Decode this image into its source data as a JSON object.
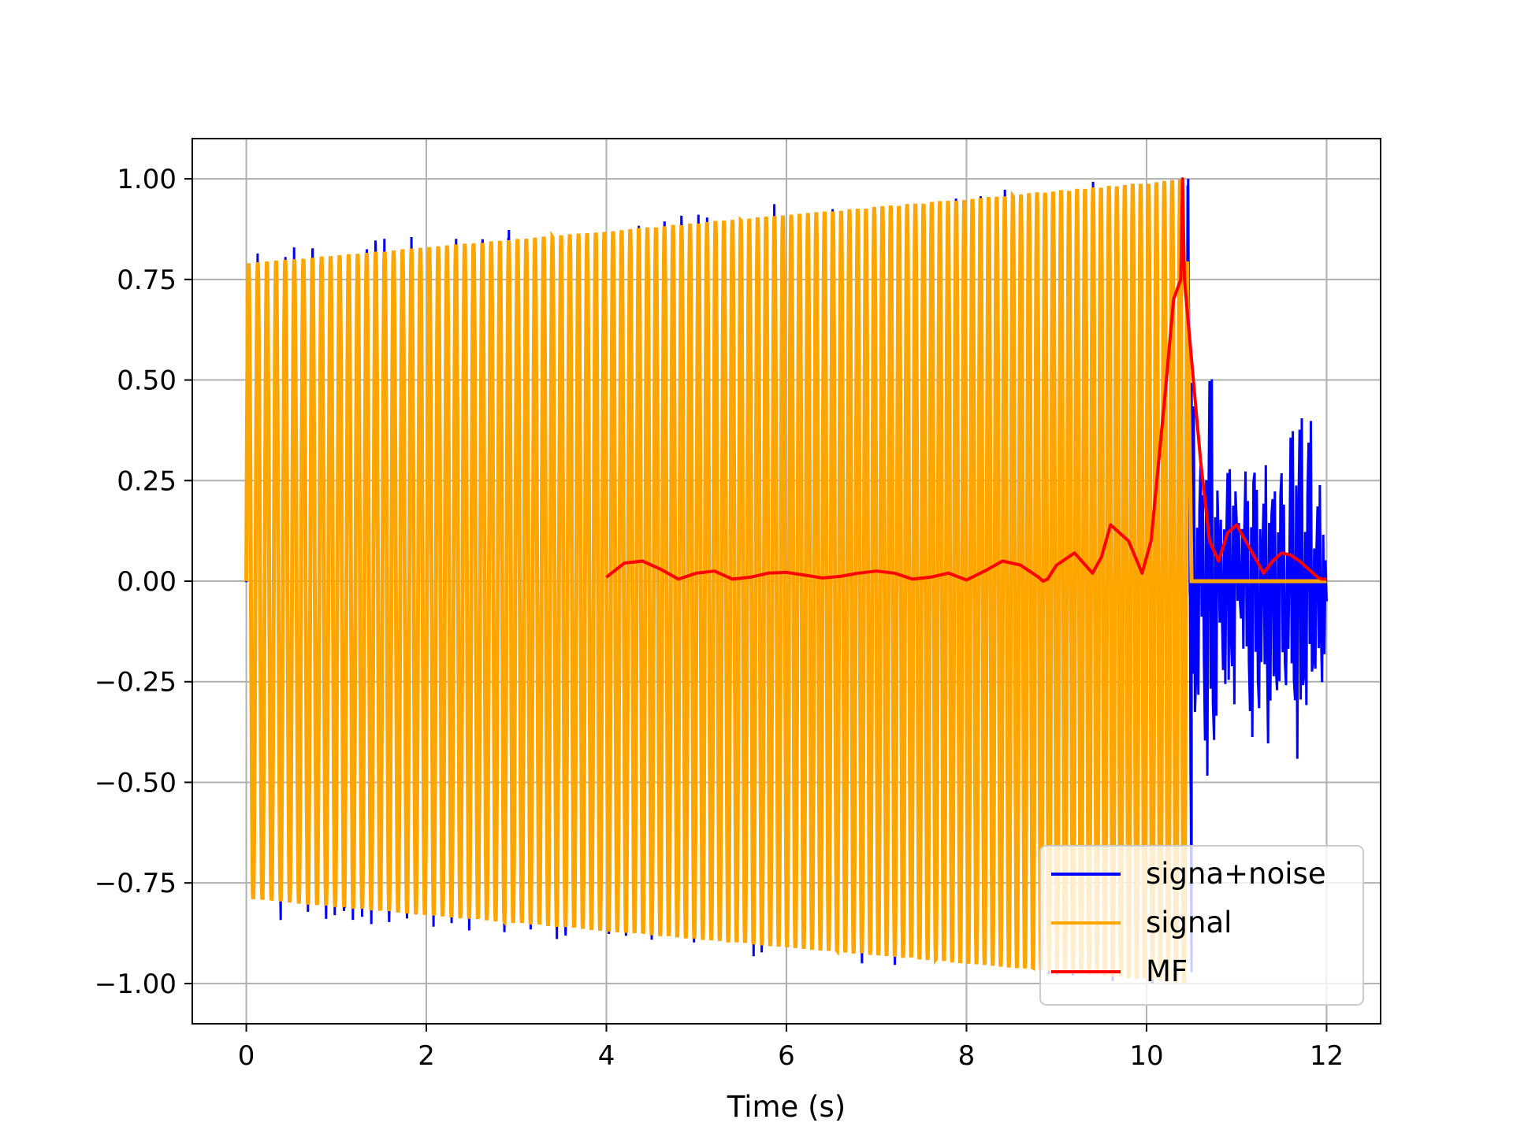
{
  "chart_data": {
    "type": "line",
    "title": "",
    "xlabel": "Time (s)",
    "ylabel": "",
    "xlim": [
      -0.6,
      12.6
    ],
    "ylim": [
      -1.1,
      1.1
    ],
    "xticks": [
      0,
      2,
      4,
      6,
      8,
      10,
      12
    ],
    "xtick_labels": [
      "0",
      "2",
      "4",
      "6",
      "8",
      "10",
      "12"
    ],
    "yticks": [
      -1.0,
      -0.75,
      -0.5,
      -0.25,
      0.0,
      0.25,
      0.5,
      0.75,
      1.0
    ],
    "ytick_labels": [
      "−1.00",
      "−0.75",
      "−0.50",
      "−0.25",
      "0.00",
      "0.25",
      "0.50",
      "0.75",
      "1.00"
    ],
    "grid": true,
    "legend_position": "lower-right",
    "series": [
      {
        "name": "signa+noise",
        "color": "#0000ff",
        "description_of_shape": "chirp plus noise, 0 to 12 s",
        "noise_segment": {
          "x": [
            10.5,
            10.55,
            10.6,
            10.65,
            10.7,
            10.75,
            10.8,
            10.85,
            10.9,
            10.95,
            11.0,
            11.05,
            11.1,
            11.15,
            11.2,
            11.25,
            11.3,
            11.35,
            11.4,
            11.45,
            11.5,
            11.55,
            11.6,
            11.65,
            11.7,
            11.75,
            11.8,
            11.85,
            11.9,
            11.95,
            12.0
          ],
          "y": [
            0.49,
            -0.3,
            0.25,
            -0.41,
            0.46,
            -0.36,
            0.1,
            -0.2,
            0.33,
            -0.28,
            0.17,
            -0.15,
            0.26,
            -0.32,
            0.3,
            -0.25,
            0.22,
            -0.33,
            0.27,
            -0.28,
            0.24,
            -0.22,
            0.3,
            -0.37,
            0.41,
            -0.3,
            0.33,
            -0.25,
            0.2,
            -0.2,
            -0.05
          ]
        }
      },
      {
        "name": "signal",
        "color": "#ffa500",
        "envelope_start": [
          0.0,
          0.79
        ],
        "envelope_end": [
          10.45,
          1.0
        ],
        "zero_after": 10.5,
        "zero_end": 12.0
      },
      {
        "name": "MF",
        "color": "#ff0000",
        "x": [
          4.0,
          4.2,
          4.4,
          4.6,
          4.8,
          5.0,
          5.2,
          5.4,
          5.6,
          5.8,
          6.0,
          6.2,
          6.4,
          6.6,
          6.8,
          7.0,
          7.2,
          7.4,
          7.6,
          7.8,
          8.0,
          8.2,
          8.4,
          8.6,
          8.8,
          8.85,
          8.9,
          9.0,
          9.2,
          9.4,
          9.5,
          9.6,
          9.8,
          9.95,
          10.05,
          10.2,
          10.3,
          10.38,
          10.4,
          10.42,
          10.5,
          10.6,
          10.7,
          10.8,
          10.9,
          11.0,
          11.1,
          11.2,
          11.3,
          11.4,
          11.5,
          11.6,
          11.7,
          11.8,
          11.9,
          11.95,
          12.0
        ],
        "y": [
          0.01,
          0.045,
          0.05,
          0.03,
          0.005,
          0.02,
          0.025,
          0.005,
          0.01,
          0.02,
          0.022,
          0.015,
          0.008,
          0.012,
          0.02,
          0.025,
          0.02,
          0.005,
          0.01,
          0.02,
          0.003,
          0.025,
          0.05,
          0.04,
          0.01,
          0.0,
          0.005,
          0.04,
          0.07,
          0.02,
          0.06,
          0.14,
          0.1,
          0.02,
          0.1,
          0.45,
          0.7,
          0.75,
          1.0,
          0.75,
          0.55,
          0.3,
          0.1,
          0.05,
          0.12,
          0.14,
          0.1,
          0.06,
          0.02,
          0.05,
          0.07,
          0.065,
          0.05,
          0.03,
          0.01,
          0.005,
          0.005
        ]
      }
    ]
  }
}
